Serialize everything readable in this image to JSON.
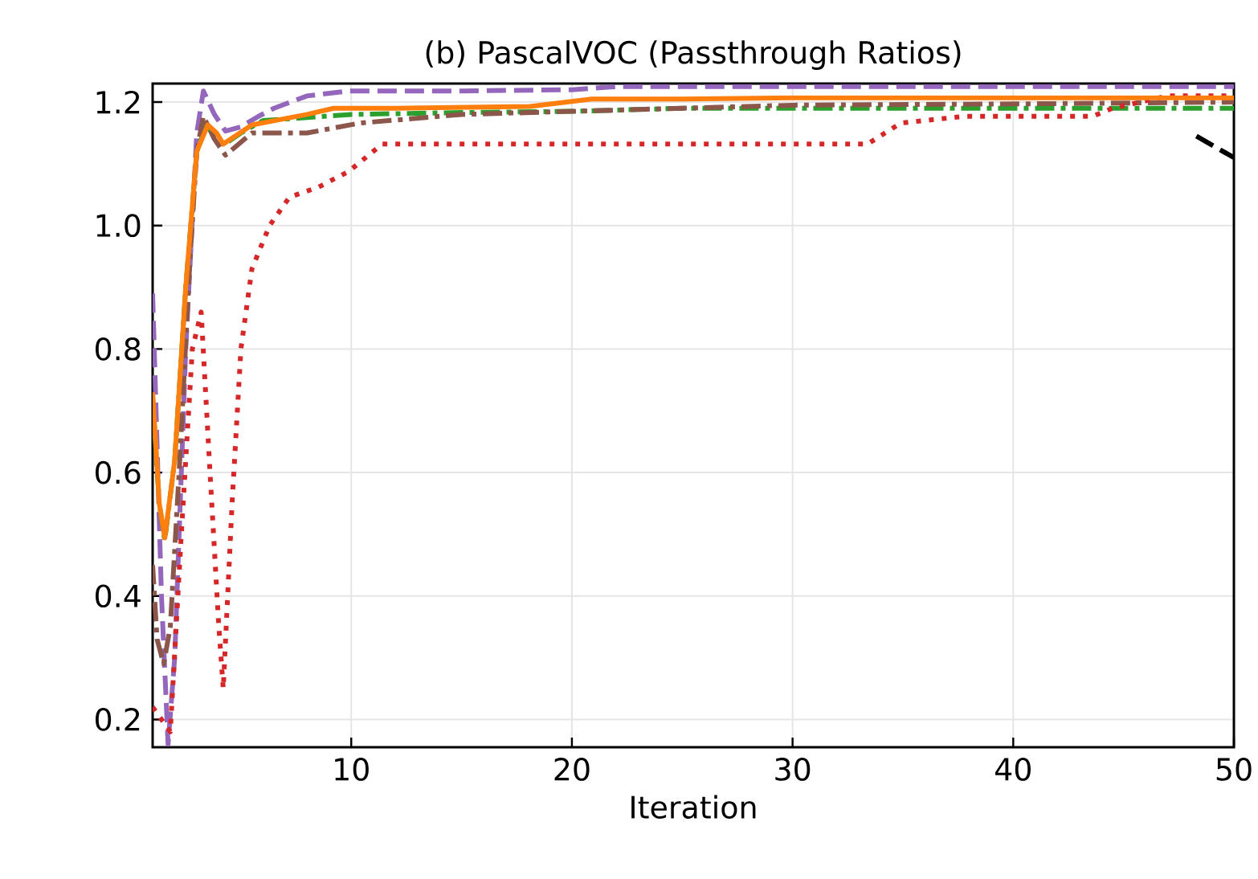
{
  "chart_data": {
    "type": "line",
    "title": "(b) PascalVOC (Passthrough Ratios)",
    "xlabel": "Iteration",
    "xlim": [
      1,
      50
    ],
    "ylim": [
      0.155,
      1.23
    ],
    "xticks": [
      10,
      20,
      30,
      40,
      50
    ],
    "yticks": [
      0.2,
      0.4,
      0.6,
      0.8,
      {
        "value": 1.0,
        "label": "1.0"
      },
      1.2
    ],
    "grid": true,
    "series": [
      {
        "color": "#9467bd",
        "line_style": "dashed",
        "x": [
          1,
          1.4,
          1.7,
          2.0,
          2.5,
          3.0,
          3.3,
          3.8,
          4.3,
          5.0,
          5.8,
          6.5,
          8,
          9.9,
          15,
          20,
          22,
          30,
          40,
          50
        ],
        "values": [
          0.89,
          0.4,
          0.16,
          0.3,
          0.8,
          1.15,
          1.218,
          1.18,
          1.153,
          1.16,
          1.177,
          1.19,
          1.21,
          1.218,
          1.218,
          1.22,
          1.225,
          1.225,
          1.225,
          1.225
        ]
      },
      {
        "color": "#2ca02c",
        "line_style": "dashdot",
        "x": [
          1,
          1.3,
          1.55,
          2.0,
          2.5,
          3.0,
          3.4,
          3.8,
          4.2,
          5.0,
          6,
          8,
          10,
          15,
          20,
          25,
          30,
          40,
          50
        ],
        "values": [
          0.72,
          0.55,
          0.49,
          0.62,
          0.9,
          1.12,
          1.16,
          1.15,
          1.13,
          1.15,
          1.17,
          1.175,
          1.18,
          1.183,
          1.185,
          1.19,
          1.19,
          1.19,
          1.19
        ]
      },
      {
        "color": "#8c564b",
        "line_style": "dashdot",
        "x": [
          1,
          1.2,
          1.5,
          1.8,
          2.2,
          2.7,
          3.0,
          3.3,
          3.8,
          4.3,
          5.5,
          8,
          10.4,
          15,
          20,
          25,
          30,
          40,
          50
        ],
        "values": [
          0.45,
          0.33,
          0.29,
          0.35,
          0.6,
          0.95,
          1.12,
          1.177,
          1.14,
          1.114,
          1.15,
          1.15,
          1.166,
          1.18,
          1.185,
          1.19,
          1.195,
          1.197,
          1.2
        ]
      },
      {
        "color": "#d62728",
        "line_style": "dotted",
        "x": [
          1,
          1.8,
          2.3,
          2.8,
          3.2,
          3.6,
          4.0,
          4.2,
          4.6,
          5.0,
          5.5,
          6.3,
          7.2,
          8.5,
          9.9,
          11.4,
          15,
          20,
          25,
          30,
          33.4,
          34.9,
          37.8,
          43.6,
          44.5,
          47,
          50
        ],
        "values": [
          0.22,
          0.18,
          0.5,
          0.8,
          0.86,
          0.6,
          0.35,
          0.25,
          0.55,
          0.8,
          0.93,
          1.0,
          1.046,
          1.062,
          1.088,
          1.132,
          1.132,
          1.132,
          1.132,
          1.132,
          1.132,
          1.166,
          1.177,
          1.177,
          1.19,
          1.21,
          1.21
        ]
      },
      {
        "color": "#ff7f0e",
        "line_style": "solid",
        "x": [
          1,
          1.3,
          1.55,
          2.0,
          2.5,
          3.0,
          3.5,
          3.9,
          4.2,
          5.5,
          8,
          9.2,
          12,
          18.1,
          20.9,
          25,
          30,
          40,
          50
        ],
        "values": [
          0.73,
          0.55,
          0.494,
          0.62,
          0.9,
          1.12,
          1.163,
          1.15,
          1.132,
          1.163,
          1.18,
          1.19,
          1.19,
          1.193,
          1.205,
          1.205,
          1.207,
          1.207,
          1.207
        ]
      },
      {
        "color": "#000000",
        "line_style": "dashed",
        "x": [
          48.3,
          50
        ],
        "values": [
          1.145,
          1.11
        ]
      }
    ]
  }
}
